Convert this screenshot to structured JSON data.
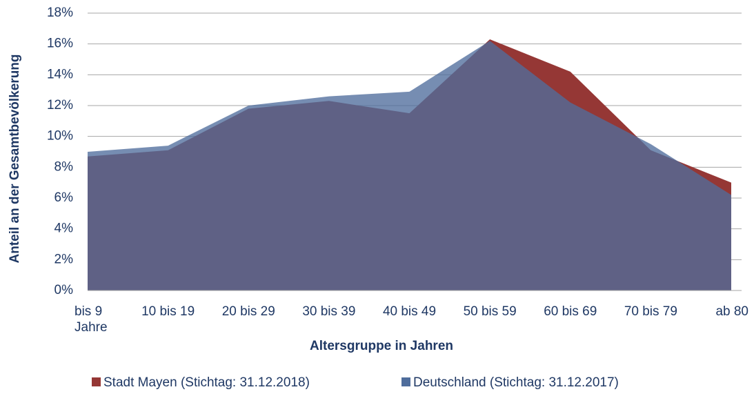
{
  "chart_data": {
    "type": "area",
    "x_label": "Altersgruppe in Jahren",
    "y_label": "Anteil an der Gesamtbevölkerung",
    "categories": [
      "bis 9 Jahre",
      "10 bis 19",
      "20 bis 29",
      "30 bis 39",
      "40 bis 49",
      "50 bis 59",
      "60 bis 69",
      "70 bis 79",
      "ab 80"
    ],
    "series": [
      {
        "name": "Stadt Mayen (Stichtag: 31.12.2018)",
        "color": "#953735",
        "values": [
          8.7,
          9.1,
          11.8,
          12.3,
          11.5,
          16.3,
          14.2,
          9.1,
          7.0
        ]
      },
      {
        "name": "Deutschland (Stichtag: 31.12.2017)",
        "color": "#4f6d9c",
        "values": [
          9.0,
          9.4,
          12.0,
          12.6,
          12.9,
          16.2,
          12.2,
          9.5,
          6.2
        ]
      }
    ],
    "ylim": [
      0,
      18
    ],
    "yticks": [
      {
        "value": 0,
        "label": "0%"
      },
      {
        "value": 2,
        "label": "2%"
      },
      {
        "value": 4,
        "label": "4%"
      },
      {
        "value": 6,
        "label": "6%"
      },
      {
        "value": 8,
        "label": "8%"
      },
      {
        "value": 10,
        "label": "10%"
      },
      {
        "value": 12,
        "label": "12%"
      },
      {
        "value": 14,
        "label": "14%"
      },
      {
        "value": 16,
        "label": "16%"
      },
      {
        "value": 18,
        "label": "18%"
      }
    ],
    "grid": true,
    "legend": "bottom"
  }
}
